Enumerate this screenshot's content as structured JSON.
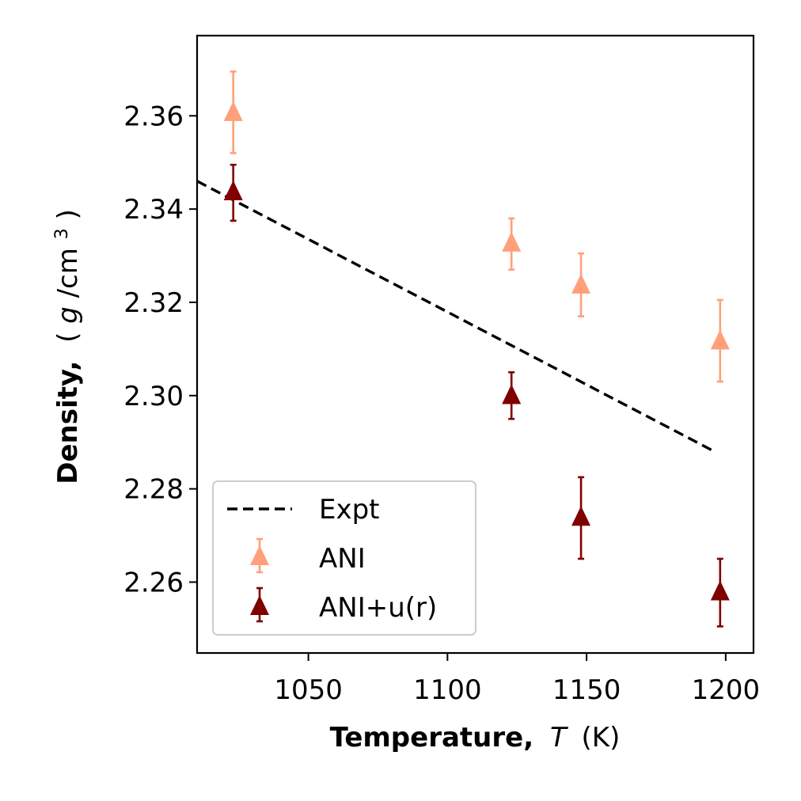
{
  "chart_data": {
    "type": "scatter",
    "xlabel": {
      "bold": "Temperature,",
      "italic": "T",
      "unit": "(K)"
    },
    "ylabel": {
      "bold": "Density,",
      "open": "(",
      "italic": "g",
      "unit": "/cm",
      "sup": "3",
      "close": ")"
    },
    "xlim": [
      1010,
      1210
    ],
    "ylim": [
      2.2448,
      2.3772
    ],
    "xticks": [
      1050,
      1100,
      1150,
      1200
    ],
    "xtick_labels": [
      "1050",
      "1100",
      "1150",
      "1200"
    ],
    "yticks": [
      2.26,
      2.28,
      2.3,
      2.32,
      2.34,
      2.36
    ],
    "ytick_labels": [
      "2.26",
      "2.28",
      "2.30",
      "2.32",
      "2.34",
      "2.36"
    ],
    "grid": false,
    "legend_position": "lower-left",
    "series": [
      {
        "name": "Expt",
        "kind": "line",
        "style": "dashed",
        "color": "#000000",
        "x": [
          1010,
          1196
        ],
        "y": [
          2.346,
          2.288
        ]
      },
      {
        "name": "ANI",
        "kind": "errorbar",
        "marker": "triangle",
        "color": "#FFA07A",
        "x": [
          1023,
          1123,
          1148,
          1198
        ],
        "y": [
          2.3605,
          2.3325,
          2.3235,
          2.3115
        ],
        "err_low": [
          0.0085,
          0.0055,
          0.0065,
          0.0085
        ],
        "err_high": [
          0.009,
          0.0055,
          0.007,
          0.009
        ]
      },
      {
        "name": "ANI+u(r)",
        "kind": "errorbar",
        "marker": "triangle",
        "color": "#800000",
        "x": [
          1023,
          1123,
          1148,
          1198
        ],
        "y": [
          2.3435,
          2.2998,
          2.2737,
          2.2577
        ],
        "err_low": [
          0.006,
          0.0048,
          0.0087,
          0.0072
        ],
        "err_high": [
          0.006,
          0.0052,
          0.0088,
          0.0073
        ]
      }
    ]
  }
}
